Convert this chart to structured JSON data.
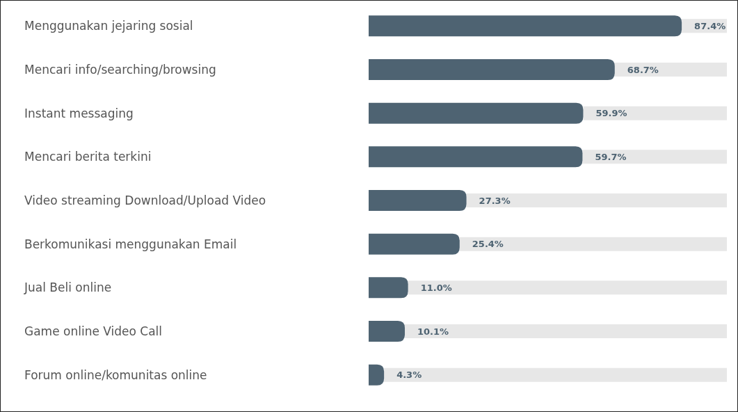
{
  "chart_data": {
    "type": "bar",
    "orientation": "horizontal",
    "stacked": true,
    "relative": false,
    "categories": [
      "Menggunakan jejaring sosial",
      "Mencari info/searching/browsing",
      "Instant messaging",
      "Mencari berita terkini",
      "Video streaming Download/Upload Video",
      "Berkomunikasi menggunakan Email",
      "Jual Beli online",
      "Game online Video Call",
      "Forum online/komunitas online"
    ],
    "series": [
      {
        "color": "#4e6372",
        "values": [
          87.4,
          68.7,
          59.9,
          59.7,
          27.3,
          25.4,
          11.0,
          10.1,
          4.3
        ],
        "value_labels": [
          "87.4%",
          "68.7%",
          "59.9%",
          "59.7%",
          "27.3%",
          "25.4%",
          "11.0%",
          "10.1%",
          "4.3%"
        ]
      },
      {
        "color": "#e7e7e7",
        "values": [
          12.6,
          31.3,
          40.1,
          40.3,
          72.7,
          74.6,
          89.0,
          89.9,
          95.7
        ]
      }
    ],
    "tick_labels": "y"
  }
}
